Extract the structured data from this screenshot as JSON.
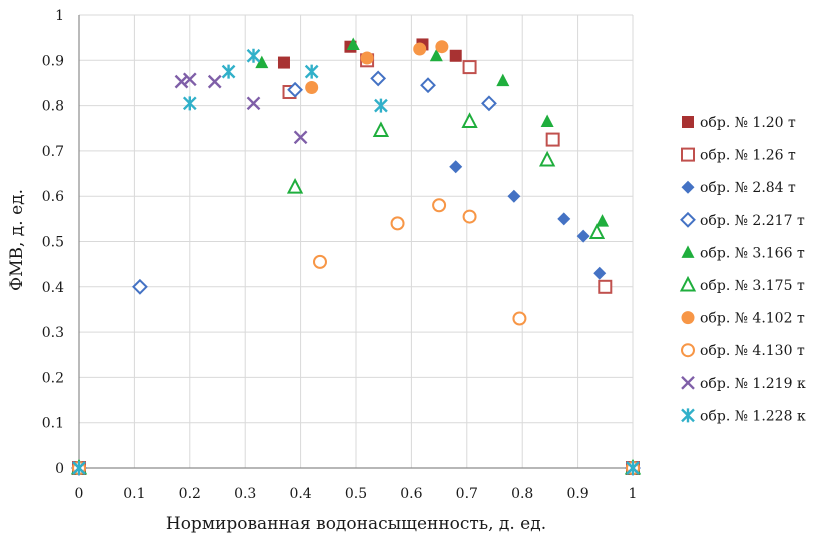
{
  "chart_data": {
    "type": "scatter",
    "xlabel": "Нормированная водонасыщенность, д. ед.",
    "ylabel": "ФМВ, д. ед.",
    "xlim": [
      0,
      1
    ],
    "ylim": [
      0,
      1
    ],
    "xticks": [
      "0",
      "0.1",
      "0.2",
      "0.3",
      "0.4",
      "0.5",
      "0.6",
      "0.7",
      "0.8",
      "0.9",
      "1"
    ],
    "yticks": [
      "0",
      "0.1",
      "0.2",
      "0.3",
      "0.4",
      "0.5",
      "0.6",
      "0.7",
      "0.8",
      "0.9",
      "1"
    ],
    "grid": true,
    "legend": "right",
    "series": [
      {
        "name": "обр. № 1.20 т",
        "marker": "square",
        "filled": true,
        "color": "#a83232",
        "points": [
          [
            0,
            0
          ],
          [
            0.37,
            0.895
          ],
          [
            0.49,
            0.93
          ],
          [
            0.62,
            0.935
          ],
          [
            0.68,
            0.91
          ],
          [
            1,
            0
          ]
        ]
      },
      {
        "name": "обр. № 1.26 т",
        "marker": "square",
        "filled": false,
        "color": "#c0504d",
        "points": [
          [
            0,
            0
          ],
          [
            0.38,
            0.83
          ],
          [
            0.52,
            0.9
          ],
          [
            0.705,
            0.885
          ],
          [
            0.855,
            0.725
          ],
          [
            0.95,
            0.4
          ],
          [
            1,
            0
          ]
        ]
      },
      {
        "name": "обр. № 2.84 т",
        "marker": "diamond",
        "filled": true,
        "color": "#4472c4",
        "points": [
          [
            0,
            0
          ],
          [
            0.68,
            0.665
          ],
          [
            0.785,
            0.6
          ],
          [
            0.875,
            0.55
          ],
          [
            0.91,
            0.512
          ],
          [
            0.94,
            0.43
          ],
          [
            1,
            0
          ]
        ]
      },
      {
        "name": "обр. № 2.217 т",
        "marker": "diamond",
        "filled": false,
        "color": "#4472c4",
        "points": [
          [
            0,
            0
          ],
          [
            0.11,
            0.4
          ],
          [
            0.39,
            0.835
          ],
          [
            0.54,
            0.86
          ],
          [
            0.63,
            0.845
          ],
          [
            0.74,
            0.805
          ],
          [
            1,
            0
          ]
        ]
      },
      {
        "name": "обр. № 3.166 т",
        "marker": "triangle",
        "filled": true,
        "color": "#1fae3d",
        "points": [
          [
            0,
            0
          ],
          [
            0.33,
            0.895
          ],
          [
            0.495,
            0.935
          ],
          [
            0.645,
            0.91
          ],
          [
            0.765,
            0.855
          ],
          [
            0.845,
            0.765
          ],
          [
            0.945,
            0.545
          ],
          [
            1,
            0
          ]
        ]
      },
      {
        "name": "обр. № 3.175 т",
        "marker": "triangle",
        "filled": false,
        "color": "#1fae3d",
        "points": [
          [
            0,
            0
          ],
          [
            0.39,
            0.62
          ],
          [
            0.545,
            0.745
          ],
          [
            0.705,
            0.765
          ],
          [
            0.845,
            0.68
          ],
          [
            0.935,
            0.52
          ],
          [
            1,
            0
          ]
        ]
      },
      {
        "name": "обр. № 4.102 т",
        "marker": "circle",
        "filled": true,
        "color": "#f79646",
        "points": [
          [
            0,
            0
          ],
          [
            0.42,
            0.84
          ],
          [
            0.52,
            0.905
          ],
          [
            0.615,
            0.925
          ],
          [
            0.655,
            0.93
          ],
          [
            1,
            0
          ]
        ]
      },
      {
        "name": "обр. № 4.130 т",
        "marker": "circle",
        "filled": false,
        "color": "#f79646",
        "points": [
          [
            0,
            0
          ],
          [
            0.435,
            0.455
          ],
          [
            0.575,
            0.54
          ],
          [
            0.65,
            0.58
          ],
          [
            0.705,
            0.555
          ],
          [
            0.795,
            0.33
          ],
          [
            1,
            0
          ]
        ]
      },
      {
        "name": "обр. № 1.219 к",
        "marker": "x",
        "filled": false,
        "color": "#7f5fa8",
        "points": [
          [
            0,
            0
          ],
          [
            0.185,
            0.853
          ],
          [
            0.2,
            0.858
          ],
          [
            0.245,
            0.853
          ],
          [
            0.315,
            0.805
          ],
          [
            0.4,
            0.73
          ],
          [
            1,
            0
          ]
        ]
      },
      {
        "name": "обр. № 1.228 к",
        "marker": "asterisk",
        "filled": false,
        "color": "#31b0c9",
        "points": [
          [
            0,
            0
          ],
          [
            0.2,
            0.805
          ],
          [
            0.27,
            0.875
          ],
          [
            0.315,
            0.91
          ],
          [
            0.42,
            0.875
          ],
          [
            0.545,
            0.8
          ],
          [
            1,
            0
          ]
        ]
      }
    ]
  }
}
